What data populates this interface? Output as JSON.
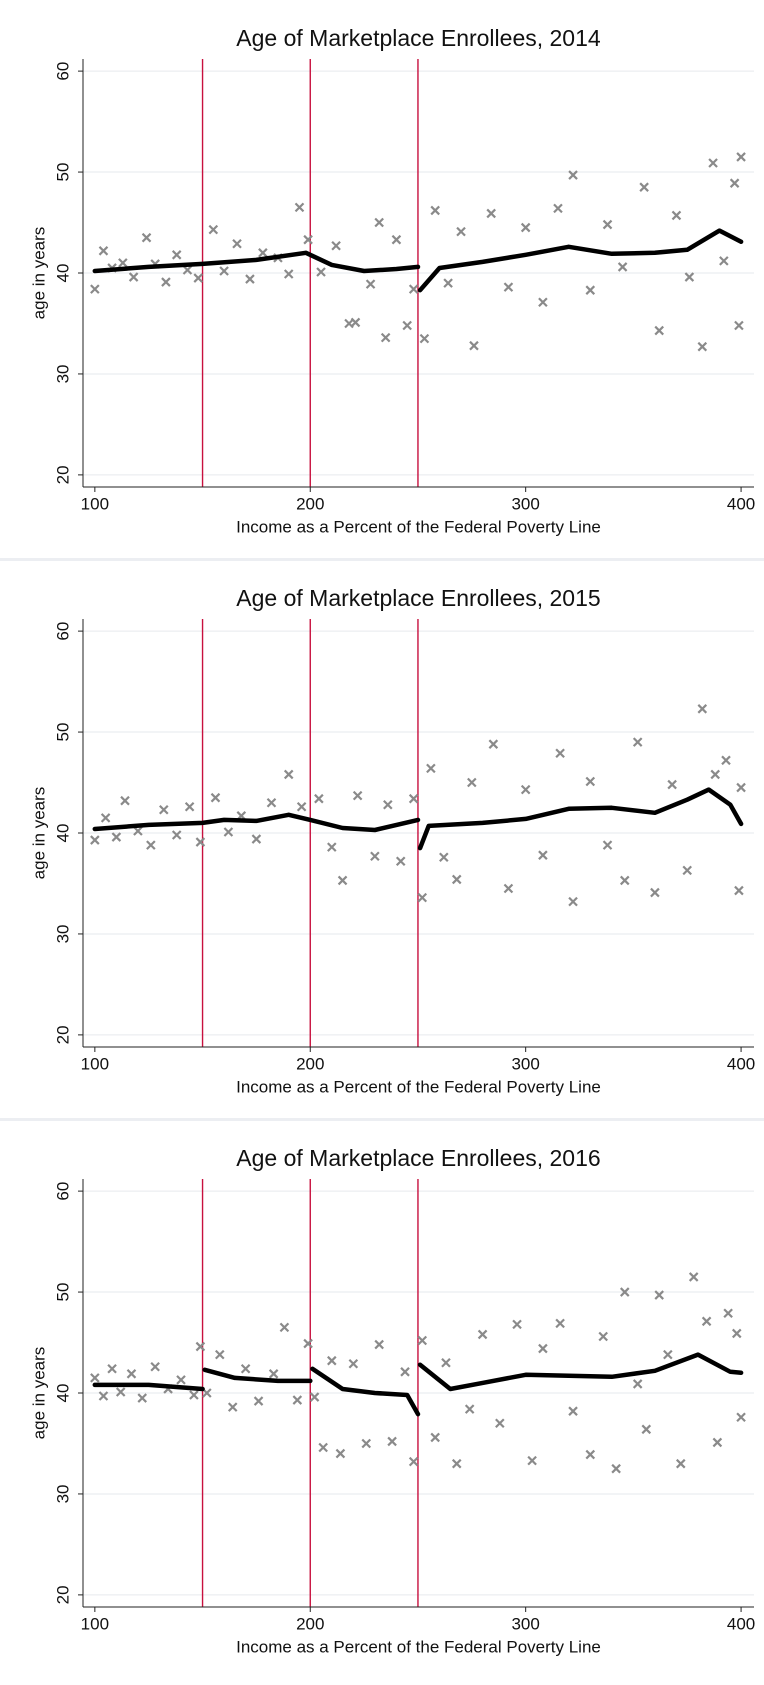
{
  "chart_data": [
    {
      "type": "scatter",
      "title": "Age of Marketplace Enrollees, 2014",
      "xlabel": "Income as a Percent of the Federal Poverty Line",
      "ylabel": "age in years",
      "xlim": [
        94.5,
        406
      ],
      "ylim": [
        18.8,
        61.2
      ],
      "xticks": [
        100,
        200,
        300,
        400
      ],
      "yticks": [
        20,
        30,
        40,
        50,
        60
      ],
      "grid": true,
      "vlines": [
        150,
        200,
        250
      ],
      "vline_color": "#c8103e",
      "series": [
        {
          "color": "#8a8a8a",
          "marker": "x",
          "x": [
            100,
            104,
            108,
            113,
            118,
            124,
            128,
            133,
            138,
            143,
            148,
            155,
            160,
            166,
            172,
            178,
            185,
            190,
            195,
            199,
            205,
            212,
            218,
            221,
            228,
            232,
            235,
            240,
            245,
            248,
            253,
            258,
            264,
            270,
            276,
            284,
            292,
            300,
            308,
            315,
            322,
            330,
            338,
            345,
            355,
            362,
            370,
            376,
            382,
            387,
            392,
            397,
            399,
            400
          ],
          "values": [
            38.4,
            42.2,
            40.5,
            41.0,
            39.6,
            43.5,
            40.9,
            39.1,
            41.8,
            40.3,
            39.5,
            44.3,
            40.2,
            42.9,
            39.4,
            42.0,
            41.5,
            39.9,
            46.5,
            43.3,
            40.1,
            42.7,
            35.0,
            35.1,
            38.9,
            45.0,
            33.6,
            43.3,
            34.8,
            38.4,
            33.5,
            46.2,
            39.0,
            44.1,
            32.8,
            45.9,
            38.6,
            44.5,
            37.1,
            46.4,
            49.7,
            38.3,
            44.8,
            40.6,
            48.5,
            34.3,
            45.7,
            39.6,
            32.7,
            50.9,
            41.2,
            48.9,
            34.8,
            51.5
          ]
        },
        {
          "color": "#000000",
          "style": "line",
          "x": [
            100,
            125,
            150,
            175,
            198,
            210,
            225,
            240,
            250,
            250.5,
            251,
            260,
            280,
            300,
            320,
            340,
            360,
            375,
            390,
            400
          ],
          "values": [
            40.2,
            40.6,
            40.9,
            41.3,
            42.0,
            40.8,
            40.2,
            40.4,
            40.6,
            null,
            38.3,
            40.5,
            41.1,
            41.8,
            42.6,
            41.9,
            42.0,
            42.3,
            44.2,
            43.1
          ]
        }
      ]
    },
    {
      "type": "scatter",
      "title": "Age of Marketplace Enrollees, 2015",
      "xlabel": "Income as a Percent of the Federal Poverty Line",
      "ylabel": "age in years",
      "xlim": [
        94.5,
        406
      ],
      "ylim": [
        18.8,
        61.2
      ],
      "xticks": [
        100,
        200,
        300,
        400
      ],
      "yticks": [
        20,
        30,
        40,
        50,
        60
      ],
      "grid": true,
      "vlines": [
        150,
        200,
        250
      ],
      "vline_color": "#c8103e",
      "series": [
        {
          "color": "#8a8a8a",
          "marker": "x",
          "x": [
            100,
            105,
            110,
            114,
            120,
            126,
            132,
            138,
            144,
            149,
            156,
            162,
            168,
            175,
            182,
            190,
            196,
            204,
            210,
            215,
            222,
            230,
            236,
            242,
            248,
            252,
            256,
            262,
            268,
            275,
            285,
            292,
            300,
            308,
            316,
            322,
            330,
            338,
            346,
            352,
            360,
            368,
            375,
            382,
            388,
            393,
            399,
            400
          ],
          "values": [
            39.3,
            41.5,
            39.6,
            43.2,
            40.2,
            38.8,
            42.3,
            39.8,
            42.6,
            39.1,
            43.5,
            40.1,
            41.7,
            39.4,
            43.0,
            45.8,
            42.6,
            43.4,
            38.6,
            35.3,
            43.7,
            37.7,
            42.8,
            37.2,
            43.4,
            33.6,
            46.4,
            37.6,
            35.4,
            45.0,
            48.8,
            34.5,
            44.3,
            37.8,
            47.9,
            33.2,
            45.1,
            38.8,
            35.3,
            49.0,
            34.1,
            44.8,
            36.3,
            52.3,
            45.8,
            47.2,
            34.3,
            44.5
          ]
        },
        {
          "color": "#000000",
          "style": "line",
          "x": [
            100,
            125,
            150,
            160,
            175,
            190,
            200,
            215,
            230,
            250,
            250.5,
            251,
            255,
            280,
            300,
            320,
            340,
            360,
            375,
            385,
            395,
            400
          ],
          "values": [
            40.4,
            40.8,
            41.0,
            41.3,
            41.2,
            41.8,
            41.3,
            40.5,
            40.3,
            41.3,
            null,
            38.5,
            40.7,
            41.0,
            41.4,
            42.4,
            42.5,
            42.0,
            43.3,
            44.3,
            42.8,
            40.9
          ]
        }
      ]
    },
    {
      "type": "scatter",
      "title": "Age of Marketplace Enrollees, 2016",
      "xlabel": "Income as a Percent of the Federal Poverty Line",
      "ylabel": "age in years",
      "xlim": [
        94.5,
        406
      ],
      "ylim": [
        18.8,
        61.2
      ],
      "xticks": [
        100,
        200,
        300,
        400
      ],
      "yticks": [
        20,
        30,
        40,
        50,
        60
      ],
      "grid": true,
      "vlines": [
        150,
        200,
        250
      ],
      "vline_color": "#c8103e",
      "series": [
        {
          "color": "#8a8a8a",
          "marker": "x",
          "x": [
            100,
            104,
            108,
            112,
            117,
            122,
            128,
            134,
            140,
            146,
            149,
            152,
            158,
            164,
            170,
            176,
            183,
            188,
            194,
            199,
            202,
            206,
            210,
            214,
            220,
            226,
            232,
            238,
            244,
            248,
            252,
            258,
            263,
            268,
            274,
            280,
            288,
            296,
            303,
            308,
            316,
            322,
            330,
            336,
            342,
            346,
            352,
            356,
            362,
            366,
            372,
            378,
            384,
            389,
            394,
            398,
            400
          ],
          "values": [
            41.5,
            39.7,
            42.4,
            40.1,
            41.9,
            39.5,
            42.6,
            40.4,
            41.3,
            39.8,
            44.6,
            40.0,
            43.8,
            38.6,
            42.4,
            39.2,
            41.9,
            46.5,
            39.3,
            44.9,
            39.6,
            34.6,
            43.2,
            34.0,
            42.9,
            35.0,
            44.8,
            35.2,
            42.1,
            33.2,
            45.2,
            35.6,
            43.0,
            33.0,
            38.4,
            45.8,
            37.0,
            46.8,
            33.3,
            44.4,
            46.9,
            38.2,
            33.9,
            45.6,
            32.5,
            50.0,
            40.9,
            36.4,
            49.7,
            43.8,
            33.0,
            51.5,
            47.1,
            35.1,
            47.9,
            45.9,
            37.6
          ]
        },
        {
          "color": "#000000",
          "style": "line",
          "x": [
            100,
            125,
            150,
            150.5,
            151,
            165,
            185,
            200,
            200.5,
            201,
            215,
            230,
            245,
            250,
            250.5,
            251,
            265,
            280,
            300,
            320,
            340,
            360,
            380,
            395,
            400
          ],
          "values": [
            40.8,
            40.8,
            40.4,
            null,
            42.3,
            41.5,
            41.2,
            41.2,
            null,
            42.4,
            40.4,
            40.0,
            39.8,
            37.9,
            null,
            42.8,
            40.4,
            41.0,
            41.8,
            41.7,
            41.6,
            42.2,
            43.8,
            42.1,
            42.0
          ]
        }
      ]
    }
  ]
}
